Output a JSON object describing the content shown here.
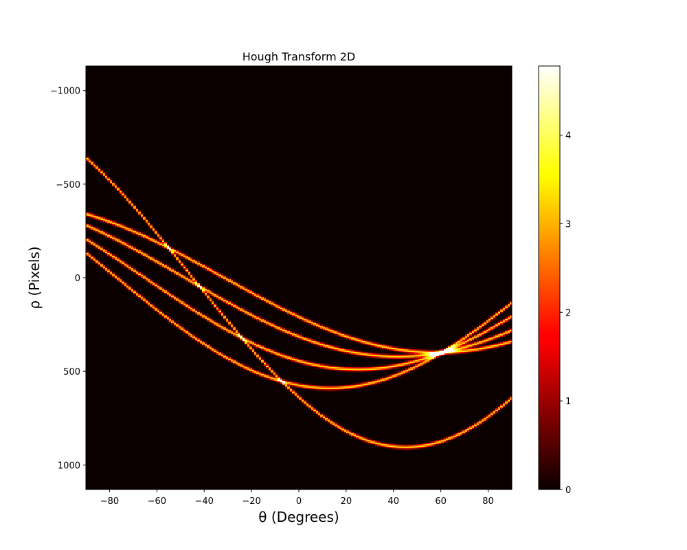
{
  "chart_data": {
    "type": "heatmap",
    "title": "Hough Transform 2D",
    "xlabel": "θ (Degrees)",
    "ylabel": "ρ (Pixels)",
    "xlim": [
      -90,
      90
    ],
    "ylim": [
      1131,
      -1131
    ],
    "y_inverted": true,
    "xticks": [
      -80,
      -60,
      -40,
      -20,
      0,
      20,
      40,
      60,
      80
    ],
    "yticks": [
      -1000,
      -500,
      0,
      500,
      1000
    ],
    "colormap": "hot",
    "colorbar": {
      "range": [
        0,
        4.78
      ],
      "ticks": [
        0,
        1,
        2,
        3,
        4
      ]
    },
    "grid": false,
    "description_of_marks": "sinusoidal accumulator curves rho = x*cos(theta) + y*sin(theta), one per edge point",
    "source_points": [
      {
        "x": 210,
        "y": 340
      },
      {
        "x": 315,
        "y": 280
      },
      {
        "x": 445,
        "y": 205
      },
      {
        "x": 575,
        "y": 132
      },
      {
        "x": 640,
        "y": 640
      }
    ],
    "peak": {
      "theta": 60,
      "rho": 400
    }
  }
}
